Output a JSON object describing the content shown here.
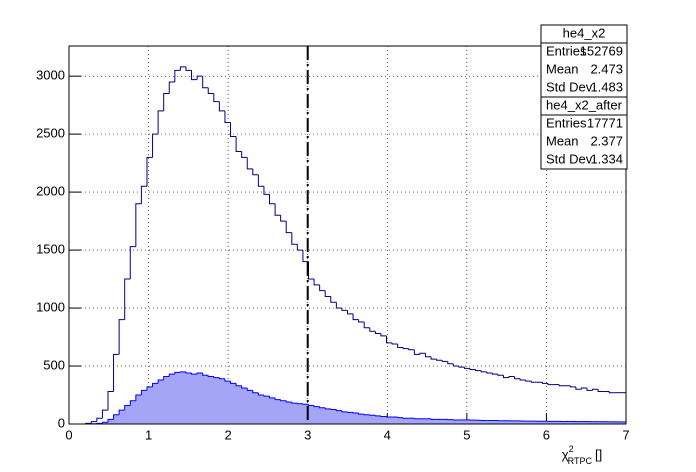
{
  "chart_data": {
    "type": "histogram",
    "xlabel": {
      "symbol": "χ",
      "sup": "2",
      "sub": "RTPC",
      "unit": "[]"
    },
    "bins": [
      0,
      0.07,
      0.14,
      0.21,
      0.28,
      0.35,
      0.42,
      0.49,
      0.56,
      0.63,
      0.7,
      0.77,
      0.84,
      0.91,
      0.98,
      1.05,
      1.12,
      1.19,
      1.26,
      1.33,
      1.4,
      1.47,
      1.54,
      1.61,
      1.68,
      1.75,
      1.82,
      1.89,
      1.96,
      2.03,
      2.1,
      2.17,
      2.24,
      2.31,
      2.38,
      2.45,
      2.52,
      2.59,
      2.66,
      2.73,
      2.8,
      2.87,
      2.94,
      3.01,
      3.08,
      3.15,
      3.22,
      3.29,
      3.36,
      3.43,
      3.5,
      3.57,
      3.64,
      3.71,
      3.78,
      3.85,
      3.92,
      3.99,
      4.06,
      4.13,
      4.2,
      4.27,
      4.34,
      4.41,
      4.48,
      4.55,
      4.62,
      4.69,
      4.76,
      4.83,
      4.9,
      4.97,
      5.04,
      5.11,
      5.18,
      5.25,
      5.32,
      5.39,
      5.46,
      5.53,
      5.6,
      5.67,
      5.74,
      5.81,
      5.88,
      5.95,
      6.02,
      6.09,
      6.16,
      6.23,
      6.3,
      6.37,
      6.44,
      6.51,
      6.58,
      6.65,
      6.72,
      6.79,
      6.86,
      6.93,
      7
    ],
    "series": [
      {
        "name": "he4_x2",
        "color": "#000080",
        "filled": false,
        "values": [
          0,
          0,
          0,
          5,
          20,
          50,
          120,
          280,
          600,
          900,
          1250,
          1530,
          1900,
          2050,
          2300,
          2500,
          2700,
          2850,
          2950,
          3050,
          3080,
          3050,
          2970,
          3000,
          2900,
          2850,
          2780,
          2700,
          2600,
          2480,
          2350,
          2300,
          2200,
          2150,
          2050,
          1980,
          1900,
          1800,
          1750,
          1650,
          1550,
          1500,
          1400,
          1250,
          1200,
          1150,
          1100,
          1050,
          1000,
          980,
          950,
          900,
          880,
          830,
          800,
          780,
          760,
          700,
          690,
          660,
          650,
          640,
          600,
          610,
          580,
          560,
          550,
          540,
          520,
          500,
          490,
          480,
          470,
          460,
          450,
          440,
          430,
          420,
          400,
          410,
          390,
          380,
          370,
          360,
          360,
          350,
          340,
          340,
          330,
          330,
          320,
          300,
          310,
          290,
          300,
          280,
          280,
          270,
          270,
          270
        ],
        "stats": {
          "Entries": 152769,
          "Mean": 2.473,
          "Std Dev": 1.483
        }
      },
      {
        "name": "he4_x2_after",
        "color": "#0000ff",
        "fill": "#a5a5f8",
        "filled": true,
        "values": [
          0,
          0,
          0,
          0,
          2,
          5,
          15,
          40,
          80,
          120,
          160,
          200,
          250,
          290,
          320,
          350,
          380,
          410,
          430,
          445,
          450,
          440,
          430,
          440,
          420,
          410,
          400,
          390,
          370,
          350,
          330,
          310,
          290,
          270,
          250,
          240,
          225,
          210,
          200,
          190,
          180,
          175,
          170,
          160,
          150,
          140,
          130,
          125,
          115,
          105,
          100,
          95,
          85,
          80,
          75,
          70,
          65,
          60,
          60,
          55,
          50,
          50,
          45,
          45,
          45,
          40,
          40,
          40,
          38,
          35,
          35,
          35,
          33,
          32,
          30,
          30,
          30,
          28,
          28,
          27,
          27,
          26,
          25,
          25,
          24,
          24,
          23,
          23,
          22,
          22,
          22,
          21,
          21,
          20,
          20,
          20,
          19,
          19,
          18,
          18
        ],
        "stats": {
          "Entries": 17771,
          "Mean": 2.377,
          "Std Dev": 1.334
        }
      }
    ],
    "cut_line": 3,
    "xlim": [
      0,
      7
    ],
    "xticks": [
      0,
      1,
      2,
      3,
      4,
      5,
      6,
      7
    ],
    "ylim": [
      0,
      3260
    ],
    "yticks": [
      0,
      500,
      1000,
      1500,
      2000,
      2500,
      3000
    ],
    "grid": true
  }
}
